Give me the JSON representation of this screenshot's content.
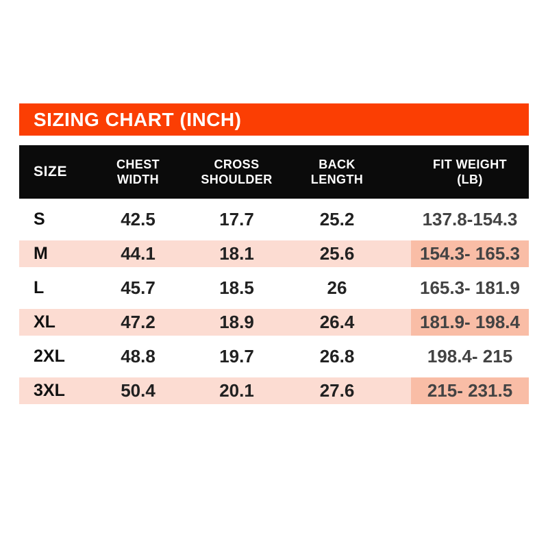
{
  "banner": {
    "background_color": "#FB3E03",
    "text_color": "#ffffff"
  },
  "table": {
    "header": {
      "background_color": "#0B0B0B",
      "text_color": "#ffffff",
      "size": "SIZE",
      "chest": "CHEST\nWIDTH",
      "cross": "CROSS\nSHOULDER",
      "back": "BACK\nLENGTH",
      "fit": "FIT WEIGHT\n(LB)"
    },
    "colors": {
      "row_highlight": "#FCDCD2",
      "fit_cell_highlight": "#F9BDA6"
    }
  },
  "chart_data": {
    "type": "table",
    "title": "SIZING CHART (INCH)",
    "units": "inch",
    "columns": [
      "SIZE",
      "CHEST WIDTH",
      "CROSS SHOULDER",
      "BACK LENGTH",
      "FIT WEIGHT (LB)"
    ],
    "highlighted_rows": [
      "M",
      "XL",
      "3XL"
    ],
    "rows": [
      {
        "size": "S",
        "chest_width": 42.5,
        "cross_shoulder": 17.7,
        "back_length": 25.2,
        "fit_weight": "137.8-154.3"
      },
      {
        "size": "M",
        "chest_width": 44.1,
        "cross_shoulder": 18.1,
        "back_length": 25.6,
        "fit_weight": "154.3- 165.3"
      },
      {
        "size": "L",
        "chest_width": 45.7,
        "cross_shoulder": 18.5,
        "back_length": 26,
        "fit_weight": "165.3- 181.9"
      },
      {
        "size": "XL",
        "chest_width": 47.2,
        "cross_shoulder": 18.9,
        "back_length": 26.4,
        "fit_weight": "181.9- 198.4"
      },
      {
        "size": "2XL",
        "chest_width": 48.8,
        "cross_shoulder": 19.7,
        "back_length": 26.8,
        "fit_weight": "198.4- 215"
      },
      {
        "size": "3XL",
        "chest_width": 50.4,
        "cross_shoulder": 20.1,
        "back_length": 27.6,
        "fit_weight": "215- 231.5"
      }
    ]
  }
}
